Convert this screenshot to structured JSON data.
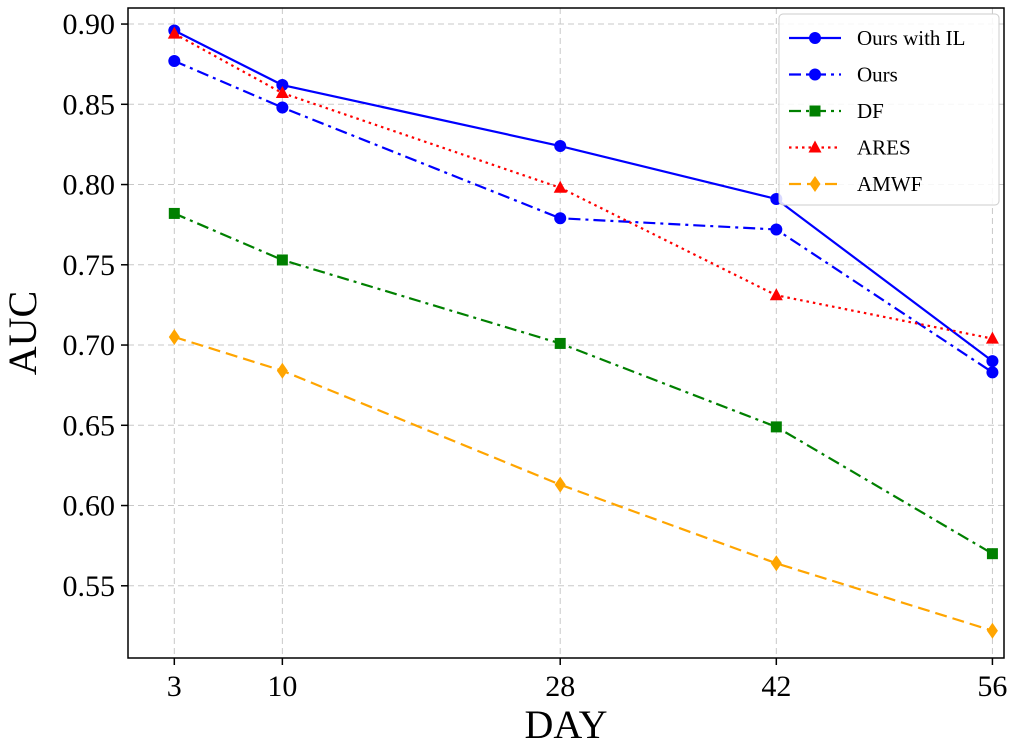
{
  "chart_data": {
    "type": "line",
    "title": "",
    "xlabel": "DAY",
    "ylabel": "AUC",
    "x": [
      3,
      10,
      28,
      42,
      56
    ],
    "xlim": [
      0,
      56.75
    ],
    "ylim": [
      0.505,
      0.91
    ],
    "xticks": [
      3,
      10,
      28,
      42,
      56
    ],
    "xtick_labels": [
      "3",
      "10",
      "28",
      "42",
      "56"
    ],
    "yticks": [
      0.55,
      0.6,
      0.65,
      0.7,
      0.75,
      0.8,
      0.85,
      0.9
    ],
    "ytick_labels": [
      "0.55",
      "0.60",
      "0.65",
      "0.70",
      "0.75",
      "0.80",
      "0.85",
      "0.90"
    ],
    "grid": true,
    "legend_position": "top-right",
    "series": [
      {
        "name": "Ours with IL",
        "values": [
          0.896,
          0.862,
          0.824,
          0.791,
          0.69
        ],
        "color": "#0000ff",
        "linestyle": "solid",
        "marker": "circle"
      },
      {
        "name": "Ours",
        "values": [
          0.877,
          0.848,
          0.779,
          0.772,
          0.683
        ],
        "color": "#0000ff",
        "linestyle": "dashdot",
        "marker": "circle"
      },
      {
        "name": "DF",
        "values": [
          0.782,
          0.753,
          0.701,
          0.649,
          0.57
        ],
        "color": "#008000",
        "linestyle": "dashdot",
        "marker": "square"
      },
      {
        "name": "ARES",
        "values": [
          0.894,
          0.857,
          0.798,
          0.731,
          0.704
        ],
        "color": "#ff0000",
        "linestyle": "dotted",
        "marker": "triangle"
      },
      {
        "name": "AMWF",
        "values": [
          0.705,
          0.684,
          0.613,
          0.564,
          0.522
        ],
        "color": "#ffa500",
        "linestyle": "dashed",
        "marker": "diamond"
      }
    ]
  }
}
